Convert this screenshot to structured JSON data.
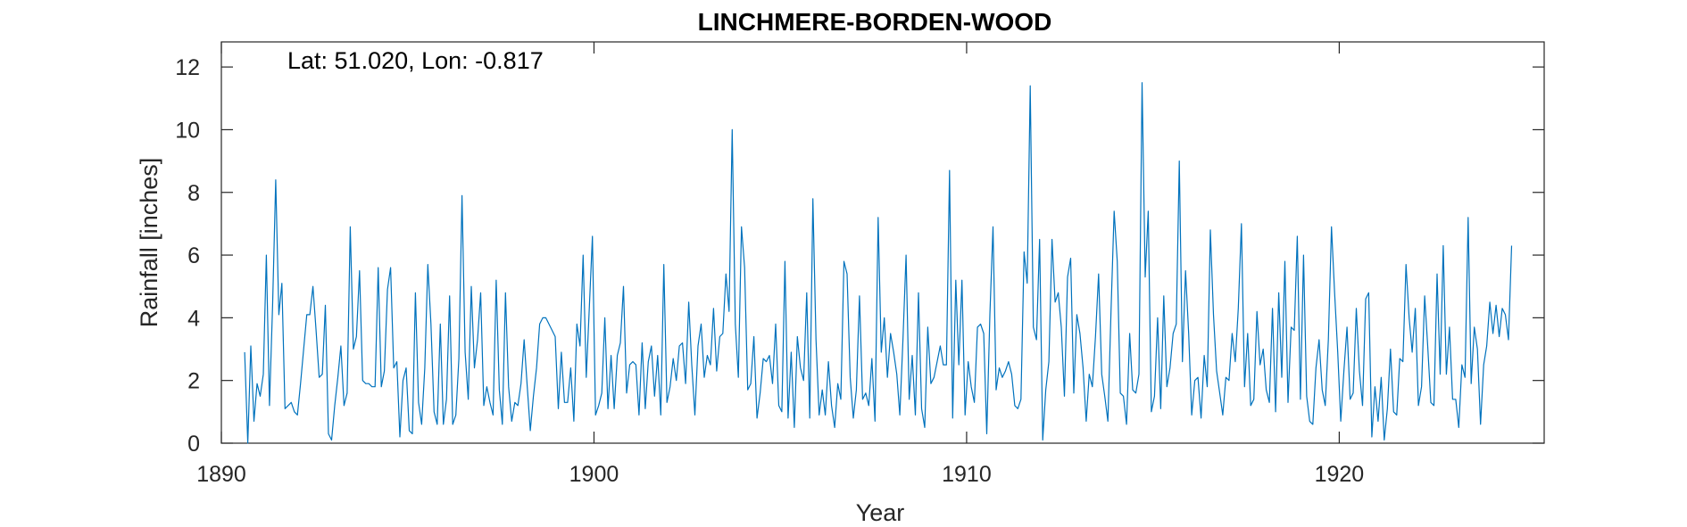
{
  "chart_data": {
    "type": "line",
    "title": "LINCHMERE-BORDEN-WOOD",
    "annotation": "Lat: 51.020, Lon: -0.817",
    "xlabel": "Year",
    "ylabel": "Rainfall [inches]",
    "xlim": [
      1890,
      1925.5
    ],
    "ylim": [
      0,
      12.8
    ],
    "xticks": [
      1890,
      1900,
      1910,
      1920
    ],
    "yticks": [
      0,
      2,
      4,
      6,
      8,
      10,
      12
    ],
    "grid": false,
    "series_color": "#0072BD",
    "series": [
      {
        "x_start": 1890.625,
        "x_step": 0.0833333,
        "values": [
          2.9,
          0.0,
          3.1,
          0.7,
          1.9,
          1.5,
          2.2,
          6.0,
          1.2,
          4.4,
          8.4,
          4.1,
          5.1,
          1.1,
          1.2,
          1.3,
          1.0,
          0.9,
          1.9,
          3.0,
          4.1,
          4.1,
          5.0,
          3.6,
          2.1,
          2.2,
          4.4,
          0.3,
          0.1,
          1.2,
          2.1,
          3.1,
          1.2,
          1.6,
          6.9,
          3.0,
          3.4,
          5.5,
          2.0,
          1.9,
          1.9,
          1.8,
          1.8,
          5.6,
          1.8,
          2.3,
          4.9,
          5.6,
          2.4,
          2.6,
          0.2,
          2.0,
          2.4,
          0.4,
          0.3,
          4.8,
          1.3,
          0.6,
          2.4,
          5.7,
          3.8,
          1.0,
          0.6,
          3.8,
          0.6,
          1.4,
          4.7,
          0.6,
          0.9,
          2.7,
          7.9,
          2.9,
          1.4,
          5.0,
          2.4,
          3.3,
          4.8,
          1.2,
          1.8,
          1.3,
          0.9,
          5.2,
          1.7,
          0.6,
          4.8,
          1.8,
          0.7,
          1.3,
          1.2,
          1.9,
          3.3,
          1.8,
          0.4,
          1.5,
          2.4,
          3.8,
          4.0,
          4.0,
          3.8,
          3.6,
          3.4,
          1.1,
          2.9,
          1.3,
          1.3,
          2.4,
          0.7,
          3.8,
          3.1,
          6.0,
          2.1,
          4.3,
          6.6,
          0.9,
          1.2,
          1.6,
          4.0,
          1.1,
          2.8,
          1.1,
          2.8,
          3.2,
          5.0,
          1.6,
          2.5,
          2.6,
          2.5,
          0.9,
          3.2,
          1.1,
          2.6,
          3.1,
          1.5,
          2.8,
          0.9,
          5.7,
          1.3,
          1.8,
          2.7,
          2.0,
          3.1,
          3.2,
          1.9,
          4.5,
          2.5,
          0.9,
          3.1,
          3.8,
          2.1,
          2.8,
          2.5,
          4.3,
          2.3,
          3.4,
          3.5,
          5.4,
          4.2,
          10.0,
          3.8,
          2.1,
          6.9,
          5.6,
          1.7,
          1.9,
          3.4,
          0.8,
          1.6,
          2.7,
          2.6,
          2.8,
          1.9,
          3.8,
          1.2,
          1.0,
          5.8,
          0.8,
          2.9,
          0.5,
          3.4,
          2.4,
          2.0,
          4.8,
          0.8,
          7.8,
          3.3,
          0.9,
          1.7,
          0.9,
          2.6,
          1.2,
          0.5,
          1.9,
          1.4,
          5.8,
          5.4,
          2.1,
          0.8,
          1.7,
          4.7,
          1.4,
          1.6,
          1.2,
          2.7,
          0.7,
          7.2,
          2.9,
          4.0,
          2.1,
          3.5,
          2.9,
          2.2,
          0.9,
          3.3,
          6.0,
          1.4,
          2.8,
          0.9,
          4.8,
          1.1,
          0.5,
          3.7,
          1.9,
          2.1,
          2.6,
          3.1,
          2.5,
          2.5,
          8.7,
          0.8,
          5.2,
          2.5,
          5.2,
          0.9,
          2.6,
          1.8,
          1.3,
          3.7,
          3.8,
          3.5,
          0.3,
          4.1,
          6.9,
          1.7,
          2.4,
          2.1,
          2.3,
          2.6,
          2.2,
          1.2,
          1.1,
          1.4,
          6.1,
          5.1,
          11.4,
          3.7,
          3.3,
          6.5,
          0.1,
          1.7,
          2.6,
          6.5,
          4.5,
          4.8,
          3.7,
          1.5,
          5.3,
          5.9,
          1.6,
          4.1,
          3.5,
          2.4,
          0.7,
          2.2,
          1.8,
          3.4,
          5.4,
          2.2,
          1.5,
          0.7,
          4.2,
          7.4,
          5.8,
          1.6,
          1.5,
          0.6,
          3.5,
          1.7,
          1.6,
          2.2,
          11.5,
          5.3,
          7.4,
          1.0,
          1.5,
          4.0,
          1.1,
          4.7,
          1.8,
          2.4,
          3.5,
          3.8,
          9.0,
          2.6,
          5.5,
          3.5,
          0.9,
          2.0,
          2.1,
          0.8,
          2.8,
          1.8,
          6.8,
          4.1,
          2.3,
          1.6,
          0.9,
          2.1,
          2.0,
          3.5,
          2.6,
          4.3,
          7.0,
          1.8,
          3.5,
          1.2,
          1.4,
          4.2,
          2.5,
          3.0,
          1.7,
          1.3,
          4.3,
          1.0,
          4.8,
          2.1,
          5.8,
          1.3,
          3.7,
          3.6,
          6.6,
          1.4,
          6.0,
          1.5,
          0.7,
          0.6,
          2.4,
          3.3,
          1.7,
          1.2,
          3.3,
          6.9,
          4.8,
          2.9,
          0.7,
          2.3,
          3.7,
          1.4,
          1.6,
          4.3,
          2.3,
          1.2,
          4.6,
          4.8,
          0.2,
          1.8,
          0.7,
          2.1,
          0.1,
          1.1,
          3.0,
          1.0,
          0.9,
          2.7,
          2.6,
          5.7,
          4.0,
          2.9,
          4.3,
          1.2,
          1.8,
          4.7,
          3.1,
          1.3,
          1.2,
          5.4,
          2.2,
          6.3,
          2.2,
          3.7,
          1.4,
          1.4,
          0.5,
          2.5,
          2.1,
          7.2,
          1.9,
          3.7,
          3.0,
          0.6,
          2.5,
          3.1,
          4.5,
          3.5,
          4.4,
          3.4,
          4.3,
          4.1,
          3.3,
          6.3
        ]
      }
    ]
  }
}
